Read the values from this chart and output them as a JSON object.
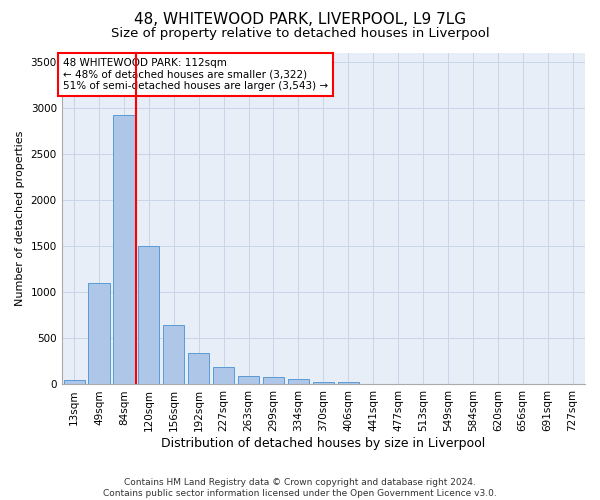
{
  "title1": "48, WHITEWOOD PARK, LIVERPOOL, L9 7LG",
  "title2": "Size of property relative to detached houses in Liverpool",
  "xlabel": "Distribution of detached houses by size in Liverpool",
  "ylabel": "Number of detached properties",
  "bin_labels": [
    "13sqm",
    "49sqm",
    "84sqm",
    "120sqm",
    "156sqm",
    "192sqm",
    "227sqm",
    "263sqm",
    "299sqm",
    "334sqm",
    "370sqm",
    "406sqm",
    "441sqm",
    "477sqm",
    "513sqm",
    "549sqm",
    "584sqm",
    "620sqm",
    "656sqm",
    "691sqm",
    "727sqm"
  ],
  "bar_values": [
    50,
    1100,
    2920,
    1500,
    640,
    340,
    185,
    90,
    80,
    55,
    30,
    25,
    10,
    5,
    0,
    0,
    0,
    0,
    0,
    0,
    0
  ],
  "bar_color": "#aec6e8",
  "bar_edge_color": "#5b9bd5",
  "grid_color": "#c8d4e8",
  "bg_color": "#e8eef8",
  "vline_color": "red",
  "vline_x_index": 2,
  "annotation_text": "48 WHITEWOOD PARK: 112sqm\n← 48% of detached houses are smaller (3,322)\n51% of semi-detached houses are larger (3,543) →",
  "ylim": [
    0,
    3600
  ],
  "yticks": [
    0,
    500,
    1000,
    1500,
    2000,
    2500,
    3000,
    3500
  ],
  "footer": "Contains HM Land Registry data © Crown copyright and database right 2024.\nContains public sector information licensed under the Open Government Licence v3.0.",
  "title1_fontsize": 11,
  "title2_fontsize": 9.5,
  "xlabel_fontsize": 9,
  "ylabel_fontsize": 8,
  "tick_fontsize": 7.5,
  "annotation_fontsize": 7.5,
  "footer_fontsize": 6.5
}
